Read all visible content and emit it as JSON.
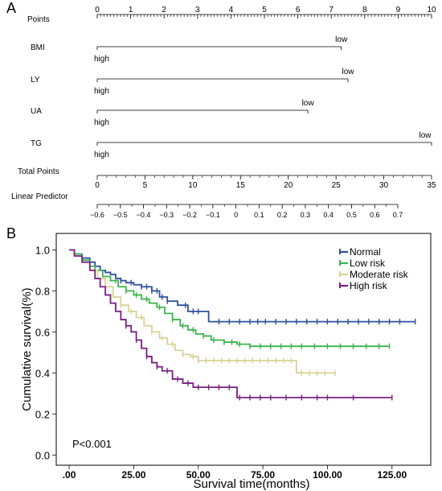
{
  "panels": {
    "a_label": "A",
    "b_label": "B"
  },
  "chart_data": [
    {
      "type": "nomogram",
      "title": "",
      "points_axis": {
        "label": "Points",
        "range": [
          0,
          10
        ],
        "ticks": [
          "0",
          "1",
          "2",
          "3",
          "4",
          "5",
          "6",
          "7",
          "8",
          "9",
          "10"
        ]
      },
      "variables": [
        {
          "label": "BMI",
          "low_label": "low",
          "high_label": "high",
          "points_max": 7.3
        },
        {
          "label": "LY",
          "low_label": "low",
          "high_label": "high",
          "points_max": 7.5
        },
        {
          "label": "UA",
          "low_label": "low",
          "high_label": "high",
          "points_max": 6.3
        },
        {
          "label": "TG",
          "low_label": "low",
          "high_label": "high",
          "points_max": 10
        }
      ],
      "total_points_axis": {
        "label": "Total Points",
        "range": [
          0,
          35
        ],
        "ticks": [
          "0",
          "5",
          "10",
          "15",
          "20",
          "25",
          "30",
          "35"
        ]
      },
      "linear_predictor_axis": {
        "label": "Linear Predictor",
        "range": [
          -0.6,
          0.7
        ],
        "ticks": [
          "-0.6",
          "-0.5",
          "-0.4",
          "-0.3",
          "-0.2",
          "-0.1",
          "0",
          "0.1",
          "0.2",
          "0.3",
          "0.4",
          "0.5",
          "0.6",
          "0.7"
        ]
      }
    },
    {
      "type": "line",
      "subtype": "kaplan-meier",
      "title": "",
      "xlabel": "Survival time(months)",
      "ylabel": "Cumulative survival(%)",
      "xlim": [
        -5,
        140
      ],
      "ylim": [
        -0.05,
        1.08
      ],
      "xticks": [
        ".00",
        "25.00",
        "50.00",
        "75.00",
        "100.00",
        "125.00"
      ],
      "xtick_values": [
        0,
        25,
        50,
        75,
        100,
        125
      ],
      "yticks": [
        "0.0",
        "0.2",
        "0.4",
        "0.6",
        "0.8",
        "1.0"
      ],
      "ytick_values": [
        0,
        0.2,
        0.4,
        0.6,
        0.8,
        1.0
      ],
      "annotation": "P<0.001",
      "legend_position": "top-right",
      "series": [
        {
          "name": "Normal",
          "color": "#2e4f9e",
          "x": [
            0,
            2,
            5,
            8,
            10,
            12,
            14,
            16,
            18,
            20,
            22,
            25,
            28,
            32,
            35,
            38,
            42,
            46,
            50,
            54,
            60,
            70,
            80,
            90,
            100,
            110,
            120,
            134
          ],
          "y": [
            1.0,
            0.98,
            0.96,
            0.94,
            0.92,
            0.9,
            0.89,
            0.88,
            0.86,
            0.85,
            0.84,
            0.83,
            0.82,
            0.8,
            0.77,
            0.75,
            0.73,
            0.7,
            0.7,
            0.65,
            0.65,
            0.65,
            0.65,
            0.65,
            0.65,
            0.65,
            0.65,
            0.65
          ],
          "censor_x": [
            20,
            24,
            28,
            30,
            32,
            34,
            36,
            38,
            45,
            48,
            50,
            58,
            62,
            66,
            70,
            73,
            76,
            80,
            84,
            88,
            92,
            96,
            100,
            104,
            108,
            112,
            116,
            120,
            124,
            128,
            134
          ]
        },
        {
          "name": "Low risk",
          "color": "#3cb44b",
          "x": [
            0,
            2,
            5,
            8,
            10,
            13,
            16,
            19,
            22,
            25,
            28,
            31,
            34,
            37,
            40,
            43,
            46,
            49,
            52,
            55,
            60,
            65,
            70,
            80,
            100,
            124
          ],
          "y": [
            1.0,
            0.98,
            0.95,
            0.92,
            0.9,
            0.87,
            0.85,
            0.82,
            0.8,
            0.78,
            0.76,
            0.74,
            0.72,
            0.69,
            0.66,
            0.63,
            0.61,
            0.59,
            0.58,
            0.56,
            0.55,
            0.54,
            0.53,
            0.53,
            0.53,
            0.53
          ],
          "censor_x": [
            18,
            22,
            26,
            30,
            35,
            40,
            44,
            48,
            52,
            56,
            60,
            63,
            66,
            70,
            74,
            78,
            82,
            86,
            90,
            95,
            100,
            105,
            110,
            115,
            120,
            124
          ]
        },
        {
          "name": "Moderate risk",
          "color": "#d8d398",
          "x": [
            0,
            2,
            5,
            8,
            11,
            14,
            17,
            20,
            23,
            26,
            29,
            32,
            35,
            38,
            41,
            44,
            47,
            50,
            55,
            60,
            70,
            80,
            88,
            95,
            103
          ],
          "y": [
            1.0,
            0.97,
            0.94,
            0.9,
            0.86,
            0.82,
            0.77,
            0.73,
            0.7,
            0.67,
            0.63,
            0.6,
            0.57,
            0.54,
            0.51,
            0.49,
            0.48,
            0.46,
            0.46,
            0.46,
            0.46,
            0.46,
            0.4,
            0.4,
            0.4
          ],
          "censor_x": [
            20,
            24,
            28,
            32,
            36,
            40,
            44,
            48,
            50,
            53,
            56,
            59,
            62,
            65,
            68,
            71,
            74,
            77,
            80,
            83,
            86,
            90,
            93,
            96,
            99,
            103
          ]
        },
        {
          "name": "High risk",
          "color": "#7b2082",
          "x": [
            0,
            2,
            5,
            8,
            10,
            12,
            14,
            16,
            18,
            20,
            22,
            24,
            26,
            28,
            30,
            32,
            34,
            36,
            40,
            44,
            48,
            52,
            56,
            60,
            65,
            70,
            80,
            100,
            125
          ],
          "y": [
            1.0,
            0.97,
            0.94,
            0.9,
            0.86,
            0.82,
            0.78,
            0.74,
            0.7,
            0.66,
            0.63,
            0.6,
            0.56,
            0.52,
            0.48,
            0.45,
            0.43,
            0.41,
            0.37,
            0.35,
            0.33,
            0.33,
            0.33,
            0.33,
            0.28,
            0.28,
            0.28,
            0.28,
            0.28
          ],
          "censor_x": [
            22,
            26,
            30,
            34,
            38,
            42,
            46,
            50,
            54,
            58,
            62,
            66,
            70,
            74,
            78,
            84,
            90,
            96,
            100,
            110,
            125
          ]
        }
      ]
    }
  ]
}
